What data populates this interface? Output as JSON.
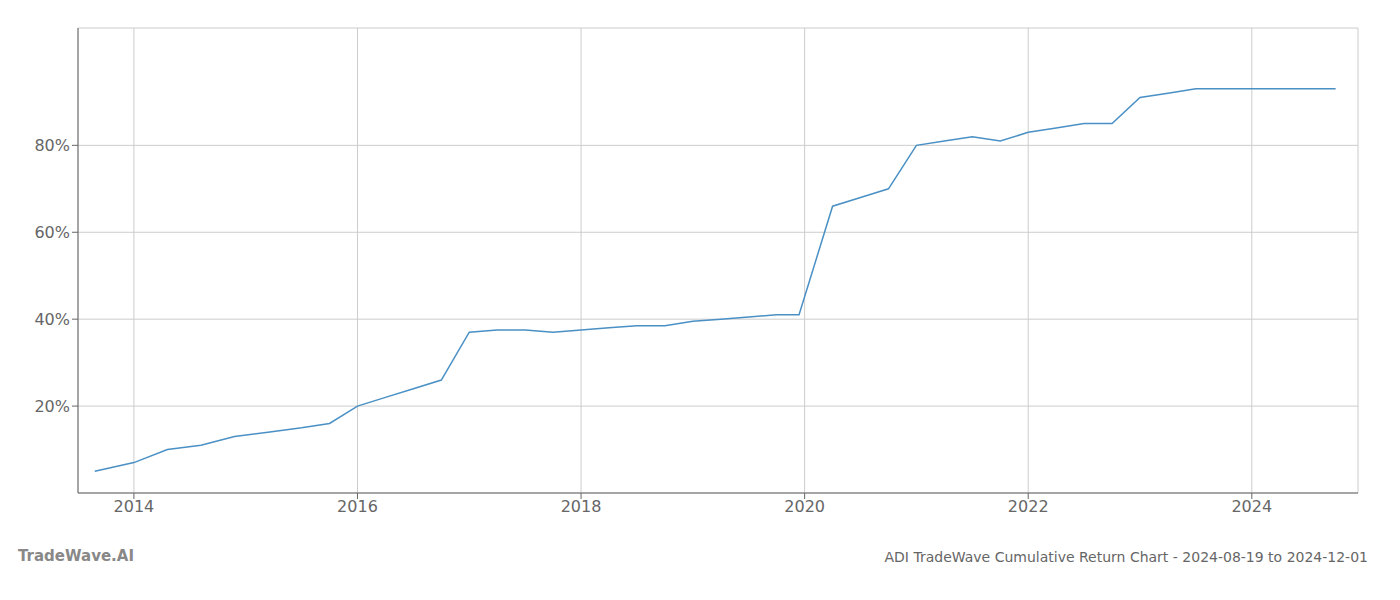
{
  "chart_data": {
    "type": "line",
    "title": "ADI TradeWave Cumulative Return Chart - 2024-08-19 to 2024-12-01",
    "annotations": [
      "TradeWave.AI"
    ],
    "x": [
      2013.65,
      2014.0,
      2014.3,
      2014.6,
      2014.9,
      2015.2,
      2015.5,
      2015.75,
      2016.0,
      2016.25,
      2016.5,
      2016.75,
      2017.0,
      2017.25,
      2017.5,
      2017.75,
      2018.0,
      2018.25,
      2018.5,
      2018.75,
      2019.0,
      2019.25,
      2019.5,
      2019.75,
      2019.95,
      2020.25,
      2020.5,
      2020.75,
      2021.0,
      2021.25,
      2021.5,
      2021.75,
      2022.0,
      2022.25,
      2022.5,
      2022.75,
      2023.0,
      2023.25,
      2023.5,
      2023.75,
      2024.0,
      2024.5,
      2024.75
    ],
    "values": [
      5,
      7,
      10,
      11,
      13,
      14,
      15,
      16,
      20,
      22,
      24,
      26,
      37,
      37.5,
      37.5,
      37,
      37.5,
      38,
      38.5,
      38.5,
      39.5,
      40,
      40.5,
      41,
      41,
      66,
      68,
      70,
      80,
      81,
      82,
      81,
      83,
      84,
      85,
      85,
      91,
      92,
      93,
      93,
      93,
      93,
      93
    ],
    "color": "#4a90c4",
    "xlim": [
      2013.5,
      2024.95
    ],
    "ylim": [
      0,
      107
    ],
    "xticks": [
      2014,
      2016,
      2018,
      2020,
      2022,
      2024
    ],
    "yticks": [
      {
        "value": 20,
        "label": "20%"
      },
      {
        "value": 40,
        "label": "40%"
      },
      {
        "value": 60,
        "label": "60%"
      },
      {
        "value": 80,
        "label": "80%"
      }
    ],
    "grid": true
  }
}
